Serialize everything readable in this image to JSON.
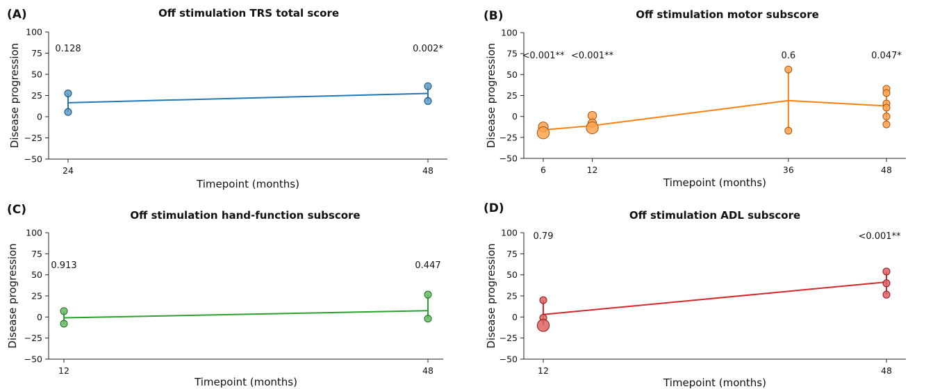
{
  "chart_data": [
    {
      "type": "line",
      "panel": "(A)",
      "title": "Off stimulation TRS total score",
      "xlabel": "Timepoint (months)",
      "ylabel": "Disease progression",
      "ylim": [
        -50,
        100
      ],
      "yticks": [
        -50,
        -25,
        0,
        25,
        50,
        75,
        100
      ],
      "x_ticks": [
        24,
        48
      ],
      "color": "#1f77b4",
      "mean_line": [
        {
          "x": 24,
          "y": 16.5
        },
        {
          "x": 48,
          "y": 27.5
        }
      ],
      "points": [
        {
          "x": 24,
          "y": 27.5,
          "size": 1
        },
        {
          "x": 24,
          "y": 5.5,
          "size": 1
        },
        {
          "x": 48,
          "y": 36,
          "size": 1
        },
        {
          "x": 48,
          "y": 18.5,
          "size": 1
        }
      ],
      "p_values": [
        {
          "x": 24,
          "text": "0.128"
        },
        {
          "x": 48,
          "text": "0.002*"
        }
      ]
    },
    {
      "type": "line",
      "panel": "(B)",
      "title": "Off stimulation motor subscore",
      "xlabel": "Timepoint (months)",
      "ylabel": "Disease progression",
      "ylim": [
        -50,
        100
      ],
      "yticks": [
        -50,
        -25,
        0,
        25,
        50,
        75,
        100
      ],
      "x_ticks": [
        6,
        12,
        36,
        48
      ],
      "color": "#ff7f0e",
      "mean_line": [
        {
          "x": 6,
          "y": -16
        },
        {
          "x": 12,
          "y": -11
        },
        {
          "x": 36,
          "y": 19
        },
        {
          "x": 48,
          "y": 12.5
        }
      ],
      "points": [
        {
          "x": 6,
          "y": -12.5,
          "size": 2
        },
        {
          "x": 6,
          "y": -19.5,
          "size": 3
        },
        {
          "x": 12,
          "y": 1,
          "size": 1.5
        },
        {
          "x": 12,
          "y": -8,
          "size": 1.5
        },
        {
          "x": 12,
          "y": -13.5,
          "size": 3
        },
        {
          "x": 36,
          "y": 56,
          "size": 1
        },
        {
          "x": 36,
          "y": -17,
          "size": 1
        },
        {
          "x": 48,
          "y": 33,
          "size": 1
        },
        {
          "x": 48,
          "y": 28,
          "size": 1
        },
        {
          "x": 48,
          "y": 15.5,
          "size": 1
        },
        {
          "x": 48,
          "y": 10.5,
          "size": 1
        },
        {
          "x": 48,
          "y": 0,
          "size": 1
        },
        {
          "x": 48,
          "y": -9.5,
          "size": 1
        }
      ],
      "p_values": [
        {
          "x": 6,
          "text": "<0.001**"
        },
        {
          "x": 12,
          "text": "<0.001**"
        },
        {
          "x": 36,
          "text": "0.6"
        },
        {
          "x": 48,
          "text": "0.047*"
        }
      ]
    },
    {
      "type": "line",
      "panel": "(C)",
      "title": "Off stimulation hand-function subscore",
      "xlabel": "Timepoint (months)",
      "ylabel": "Disease progression",
      "ylim": [
        -50,
        100
      ],
      "yticks": [
        -50,
        -25,
        0,
        25,
        50,
        75,
        100
      ],
      "x_ticks": [
        12,
        48
      ],
      "color": "#2ca02c",
      "mean_line": [
        {
          "x": 12,
          "y": -1
        },
        {
          "x": 48,
          "y": 7.5
        }
      ],
      "points": [
        {
          "x": 12,
          "y": 7,
          "size": 1
        },
        {
          "x": 12,
          "y": -8,
          "size": 1
        },
        {
          "x": 48,
          "y": 26.5,
          "size": 1
        },
        {
          "x": 48,
          "y": -2,
          "size": 1
        }
      ],
      "p_values": [
        {
          "x": 12,
          "text": "0.913"
        },
        {
          "x": 48,
          "text": "0.447"
        }
      ]
    },
    {
      "type": "line",
      "panel": "(D)",
      "title": "Off stimulation ADL subscore",
      "xlabel": "Timepoint (months)",
      "ylabel": "Disease progression",
      "ylim": [
        -50,
        100
      ],
      "yticks": [
        -50,
        -25,
        0,
        25,
        50,
        75,
        100
      ],
      "x_ticks": [
        12,
        48
      ],
      "color": "#d62728",
      "mean_line": [
        {
          "x": 12,
          "y": 3
        },
        {
          "x": 48,
          "y": 41.5
        }
      ],
      "points": [
        {
          "x": 12,
          "y": 20,
          "size": 1
        },
        {
          "x": 12,
          "y": -1,
          "size": 1
        },
        {
          "x": 12,
          "y": -10,
          "size": 3
        },
        {
          "x": 48,
          "y": 54,
          "size": 1
        },
        {
          "x": 48,
          "y": 40,
          "size": 1
        },
        {
          "x": 48,
          "y": 26.5,
          "size": 1
        }
      ],
      "p_values": [
        {
          "x": 12,
          "text": "0.79"
        },
        {
          "x": 48,
          "text": "<0.001**"
        }
      ]
    }
  ]
}
